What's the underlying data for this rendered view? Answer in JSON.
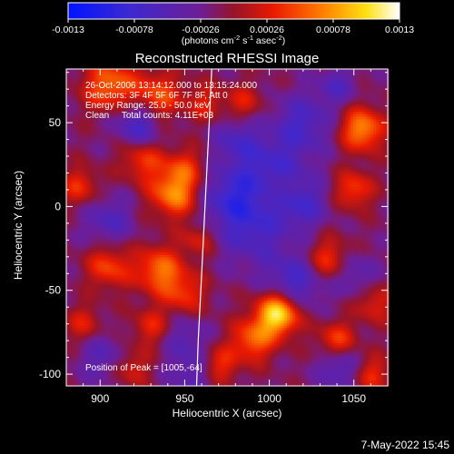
{
  "chart_data": {
    "type": "heatmap",
    "title": "Reconstructed RHESSI Image",
    "xlabel": "Heliocentric X (arcsec)",
    "ylabel": "Heliocentric Y (arcsec)",
    "xlim": [
      880,
      1070
    ],
    "ylim": [
      -107,
      82
    ],
    "x_ticks": [
      900,
      950,
      1000,
      1050
    ],
    "y_ticks": [
      -100,
      -50,
      0,
      50
    ],
    "colorbar": {
      "range": [
        -0.0013,
        0.0013
      ],
      "ticks": [
        "-0.0013",
        "-0.00078",
        "-0.00026",
        "0.00026",
        "0.00078",
        "0.0013"
      ],
      "unit_label": "(photons cm",
      "unit_exp1": "-2",
      "unit_mid": " s",
      "unit_exp2": "-1",
      "unit_mid2": " asec",
      "unit_exp3": "-2",
      "unit_end": ")"
    },
    "annotations": [
      "26-Oct-2006 13:14:12.000 to 13:15:24.000",
      "Detectors: 3F 4F 5F 6F 7F 8F, Att 0",
      "Energy Range: 25.0 - 50.0 keV",
      "Clean     Total counts: 4.11E+03"
    ],
    "peak_label": "Position of Peak = [1005,-64]",
    "peak": [
      1005,
      -64
    ],
    "limb_curve": [
      [
        966,
        82
      ],
      [
        964,
        40
      ],
      [
        962,
        0
      ],
      [
        960,
        -40
      ],
      [
        958,
        -80
      ],
      [
        957,
        -107
      ]
    ],
    "peaks_positive": [
      [
        906,
        72,
        0.00078,
        11
      ],
      [
        934,
        66,
        0.00065,
        10
      ],
      [
        925,
        28,
        0.00055,
        9
      ],
      [
        944,
        8,
        0.0009,
        10
      ],
      [
        950,
        24,
        0.00045,
        8
      ],
      [
        888,
        12,
        0.0005,
        8
      ],
      [
        905,
        -36,
        0.0006,
        9
      ],
      [
        935,
        -38,
        0.00075,
        10
      ],
      [
        950,
        -52,
        0.0005,
        9
      ],
      [
        930,
        -72,
        0.00045,
        8
      ],
      [
        890,
        -70,
        0.0004,
        8
      ],
      [
        962,
        62,
        0.0004,
        8
      ],
      [
        985,
        62,
        0.0004,
        8
      ],
      [
        1055,
        46,
        0.0009,
        9
      ],
      [
        1050,
        10,
        0.0006,
        8
      ],
      [
        1035,
        -32,
        0.0006,
        9
      ],
      [
        1005,
        -64,
        0.0013,
        9
      ],
      [
        990,
        -80,
        0.0007,
        9
      ],
      [
        970,
        -95,
        0.00055,
        8
      ],
      [
        1040,
        -80,
        0.0006,
        8
      ],
      [
        1060,
        -100,
        0.0005,
        8
      ],
      [
        1062,
        -58,
        0.00045,
        8
      ],
      [
        918,
        -96,
        0.00045,
        8
      ],
      [
        958,
        -20,
        0.0004,
        7
      ],
      [
        1005,
        10,
        0.0003,
        7
      ]
    ],
    "peaks_negative": [
      [
        1000,
        20,
        -0.0006,
        16
      ],
      [
        990,
        -15,
        -0.0005,
        14
      ],
      [
        975,
        5,
        -0.0005,
        12
      ],
      [
        1015,
        -45,
        -0.0006,
        12
      ],
      [
        1020,
        50,
        -0.0005,
        12
      ],
      [
        920,
        52,
        -0.0004,
        10
      ],
      [
        905,
        -8,
        -0.00045,
        10
      ],
      [
        902,
        -90,
        -0.0004,
        10
      ],
      [
        955,
        -100,
        -0.0004,
        10
      ],
      [
        1042,
        -96,
        -0.0005,
        9
      ],
      [
        1050,
        -40,
        -0.0004,
        9
      ],
      [
        950,
        -78,
        -0.00035,
        9
      ],
      [
        925,
        45,
        -0.0003,
        8
      ],
      [
        1040,
        72,
        -0.0004,
        8
      ],
      [
        1020,
        0,
        -0.00045,
        10
      ],
      [
        980,
        40,
        -0.0004,
        9
      ]
    ],
    "background_level": -0.00015,
    "grid": false
  },
  "footer_date": "7-May-2022 15:45"
}
